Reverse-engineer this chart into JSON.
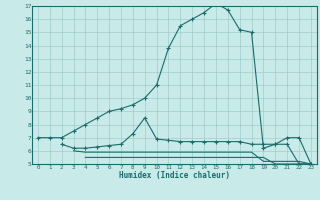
{
  "xlabel": "Humidex (Indice chaleur)",
  "bg_color": "#c8eae8",
  "grid_color": "#a0cccc",
  "line_color": "#1a6b6b",
  "xlim": [
    -0.5,
    23.5
  ],
  "ylim": [
    5,
    17
  ],
  "xticks": [
    0,
    1,
    2,
    3,
    4,
    5,
    6,
    7,
    8,
    9,
    10,
    11,
    12,
    13,
    14,
    15,
    16,
    17,
    18,
    19,
    20,
    21,
    22,
    23
  ],
  "yticks": [
    5,
    6,
    7,
    8,
    9,
    10,
    11,
    12,
    13,
    14,
    15,
    16,
    17
  ],
  "line1_x": [
    0,
    1,
    2,
    3,
    4,
    5,
    6,
    7,
    8,
    9,
    10,
    11,
    12,
    13,
    14,
    15,
    16,
    17,
    18,
    19,
    20,
    21,
    22,
    23
  ],
  "line1_y": [
    7.0,
    7.0,
    7.0,
    7.5,
    8.0,
    8.5,
    9.0,
    9.2,
    9.5,
    10.0,
    11.0,
    13.8,
    15.5,
    16.0,
    16.5,
    17.2,
    16.7,
    15.2,
    15.0,
    6.2,
    6.5,
    7.0,
    7.0,
    5.0
  ],
  "line2_x": [
    2,
    3,
    4,
    5,
    6,
    7,
    8,
    9,
    10,
    11,
    12,
    13,
    14,
    15,
    16,
    17,
    18,
    19,
    20,
    21,
    22,
    23
  ],
  "line2_y": [
    6.5,
    6.2,
    6.2,
    6.3,
    6.4,
    6.5,
    7.3,
    8.5,
    6.9,
    6.8,
    6.7,
    6.7,
    6.7,
    6.7,
    6.7,
    6.7,
    6.5,
    6.5,
    6.5,
    6.5,
    5.0,
    5.0
  ],
  "line3_x": [
    3,
    4,
    5,
    6,
    7,
    8,
    9,
    10,
    11,
    12,
    13,
    14,
    15,
    16,
    17,
    18,
    19,
    20,
    21,
    22,
    23
  ],
  "line3_y": [
    6.0,
    5.9,
    5.9,
    5.9,
    5.9,
    5.9,
    5.9,
    5.9,
    5.9,
    5.9,
    5.9,
    5.9,
    5.9,
    5.9,
    5.9,
    5.9,
    5.2,
    5.2,
    5.2,
    5.2,
    5.0
  ],
  "line4_x": [
    4,
    5,
    6,
    7,
    8,
    9,
    10,
    11,
    12,
    13,
    14,
    15,
    16,
    17,
    18,
    19,
    20,
    21,
    22,
    23
  ],
  "line4_y": [
    5.5,
    5.5,
    5.5,
    5.5,
    5.5,
    5.5,
    5.5,
    5.5,
    5.5,
    5.5,
    5.5,
    5.5,
    5.5,
    5.5,
    5.5,
    5.5,
    5.0,
    5.0,
    5.0,
    5.0
  ]
}
